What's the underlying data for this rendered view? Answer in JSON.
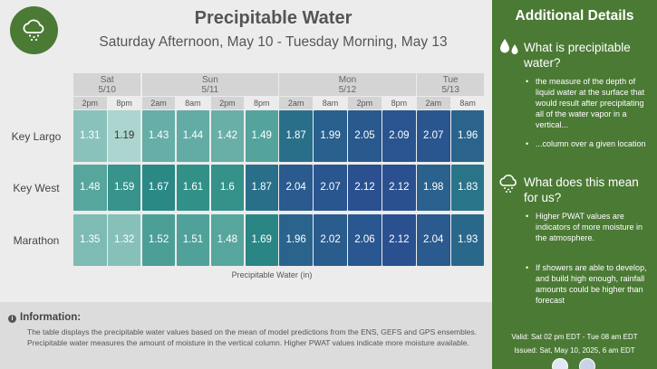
{
  "header": {
    "title": "Precipitable Water",
    "subtitle": "Saturday Afternoon, May 10 - Tuesday Morning, May 13"
  },
  "days": [
    {
      "label": "Sat\n5/10",
      "times": [
        "2pm",
        "8pm"
      ]
    },
    {
      "label": "Sun\n5/11",
      "times": [
        "2am",
        "8am",
        "2pm",
        "8pm"
      ]
    },
    {
      "label": "Mon\n5/12",
      "times": [
        "2am",
        "8am",
        "2pm",
        "8pm"
      ]
    },
    {
      "label": "Tue\n5/13",
      "times": [
        "2am",
        "8am"
      ]
    }
  ],
  "rows": [
    {
      "name": "Key Largo",
      "values": [
        "1.31",
        "1.19",
        "1.43",
        "1.44",
        "1.42",
        "1.49",
        "1.87",
        "1.99",
        "2.05",
        "2.09",
        "2.07",
        "1.96"
      ]
    },
    {
      "name": "Key West",
      "values": [
        "1.48",
        "1.59",
        "1.67",
        "1.61",
        "1.6",
        "1.87",
        "2.04",
        "2.07",
        "2.12",
        "2.12",
        "1.98",
        "1.83"
      ]
    },
    {
      "name": "Marathon",
      "values": [
        "1.35",
        "1.32",
        "1.52",
        "1.51",
        "1.48",
        "1.69",
        "1.96",
        "2.02",
        "2.06",
        "2.12",
        "2.04",
        "1.93"
      ]
    }
  ],
  "legend_label": "Precipitable Water (in)",
  "info": {
    "heading": "Information:",
    "text": "The table displays the precipitable water values based on the mean of model predictions from the ENS, GEFS and GPS ensembles. Precipitable water measures the amount of moisture in the vertical column. Higher PWAT values indicate more moisture available."
  },
  "sidebar": {
    "title": "Additional Details",
    "q1": "What is precipitable water?",
    "q1_bullets": [
      "the measure of the depth of liquid water at the surface that would result after precipitating all of the water vapor in a vertical...",
      "...column over a given location"
    ],
    "q2": "What does this mean for us?",
    "q2_bullets": [
      "Higher PWAT values are indicators of more moisture in the atmosphere.",
      "If showers are able to develop, and build high enough, rainfall amounts could be higher than forecast"
    ],
    "valid": "Valid: Sat 02 pm EDT - Tue 08 am EDT",
    "issued": "Issued: Sat, May 10, 2025, 6 am EDT"
  },
  "colors": {
    "sidebar_bg": "#4b7a35",
    "scale_low": "#b8dcd6",
    "scale_high": "#2a5090"
  },
  "icons": {
    "logo": "rain-cloud-icon",
    "q1": "water-drops-icon",
    "q2": "rain-cloud-icon",
    "info": "info-icon"
  }
}
